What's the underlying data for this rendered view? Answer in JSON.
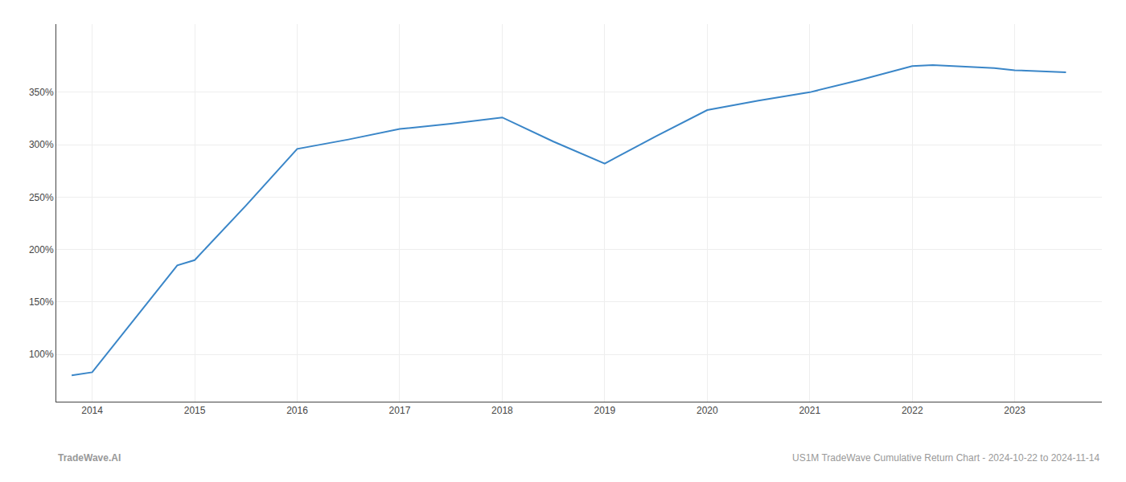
{
  "chart_data": {
    "type": "line",
    "x": [
      2013.8,
      2014.0,
      2014.83,
      2015.0,
      2015.5,
      2016.0,
      2016.5,
      2017.0,
      2017.5,
      2018.0,
      2018.5,
      2019.0,
      2019.5,
      2020.0,
      2020.5,
      2021.0,
      2021.5,
      2022.0,
      2022.2,
      2022.8,
      2023.0,
      2023.5
    ],
    "values": [
      80,
      83,
      185,
      190,
      242,
      296,
      305,
      315,
      320,
      326,
      303,
      282,
      308,
      333,
      342,
      350,
      362,
      375,
      376,
      373,
      371,
      369
    ],
    "color": "#3a86c8",
    "xlim": [
      2013.65,
      2023.85
    ],
    "xticks": [
      2014,
      2015,
      2016,
      2017,
      2018,
      2019,
      2020,
      2021,
      2022,
      2023
    ],
    "ylim": [
      55,
      415
    ],
    "yticks": [
      {
        "value": 100,
        "label": "100%"
      },
      {
        "value": 150,
        "label": "150%"
      },
      {
        "value": 200,
        "label": "200%"
      },
      {
        "value": 250,
        "label": "250%"
      },
      {
        "value": 300,
        "label": "300%"
      },
      {
        "value": 350,
        "label": "350%"
      }
    ],
    "grid": true,
    "annotations": [
      "TradeWave.AI",
      "US1M TradeWave Cumulative Return Chart - 2024-10-22 to 2024-11-14"
    ]
  }
}
